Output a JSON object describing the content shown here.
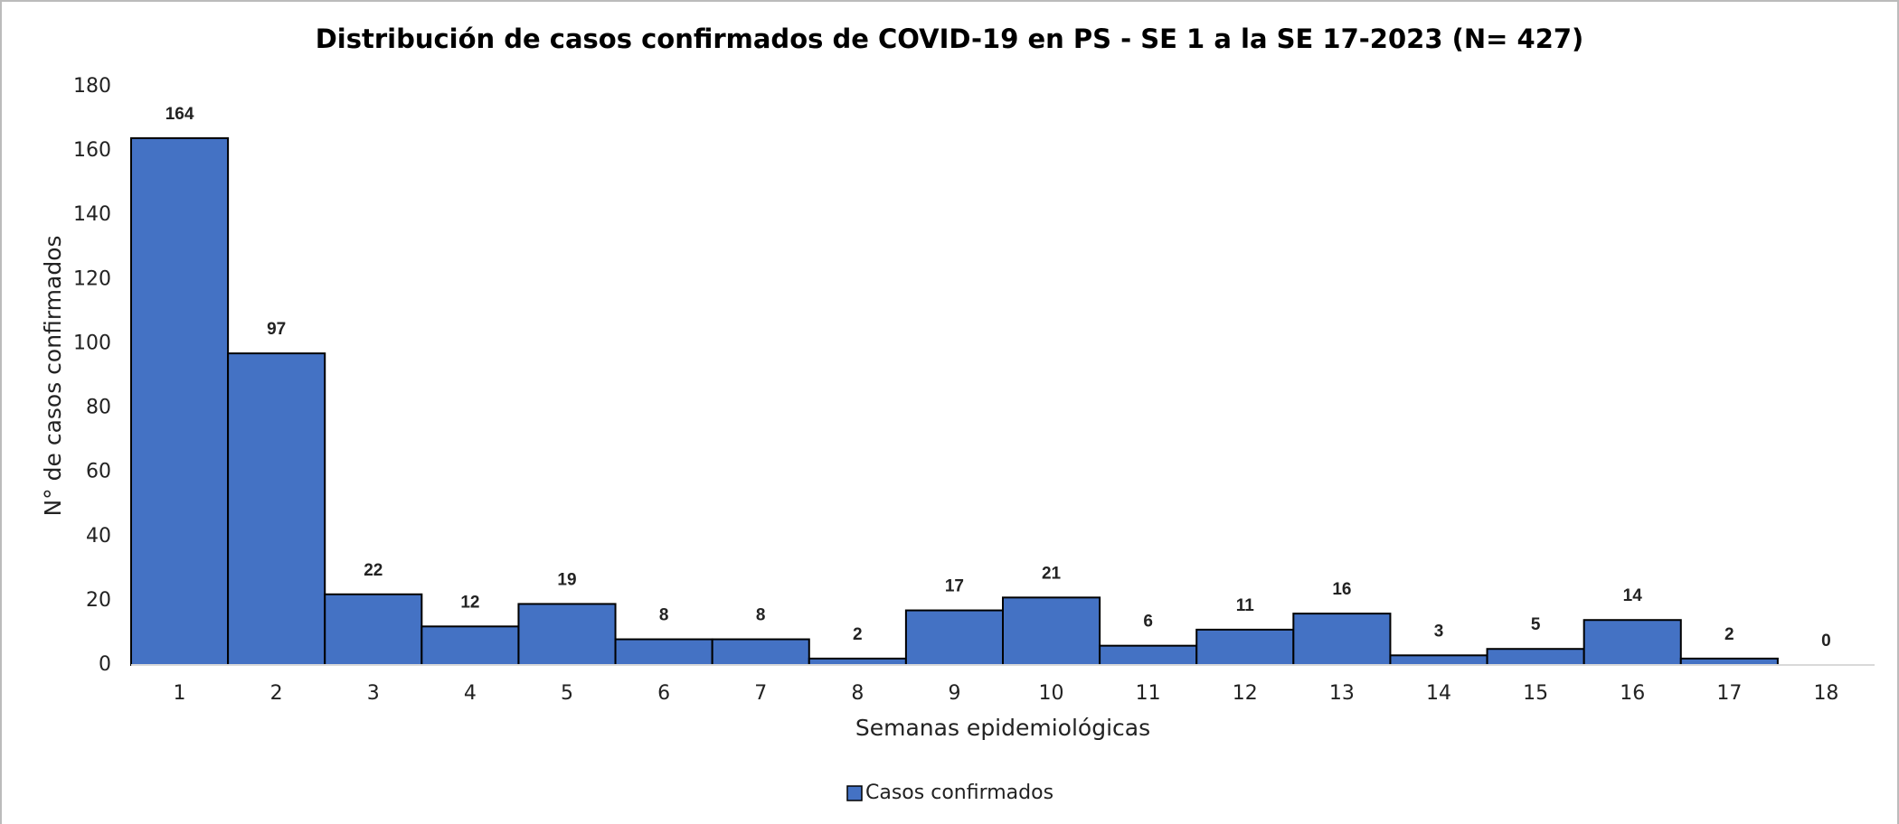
{
  "chart_data": {
    "type": "bar",
    "title": "Distribución de casos confirmados de COVID-19 en PS - SE 1 a la SE 17-2023 (N= 427)",
    "x_label": "Semanas epidemiológicas",
    "y_label": "N° de casos confirmados",
    "categories": [
      "1",
      "2",
      "3",
      "4",
      "5",
      "6",
      "7",
      "8",
      "9",
      "10",
      "11",
      "12",
      "13",
      "14",
      "15",
      "16",
      "17",
      "18"
    ],
    "series": [
      {
        "name": "Casos confirmados",
        "color": "#4472c4",
        "values": [
          164,
          97,
          22,
          12,
          19,
          8,
          8,
          2,
          17,
          21,
          6,
          11,
          16,
          3,
          5,
          14,
          2,
          0
        ]
      }
    ],
    "ylim": [
      0,
      180
    ],
    "yticks": [
      0,
      20,
      40,
      60,
      80,
      100,
      120,
      140,
      160,
      180
    ],
    "grid": false,
    "legend": "bottom"
  }
}
